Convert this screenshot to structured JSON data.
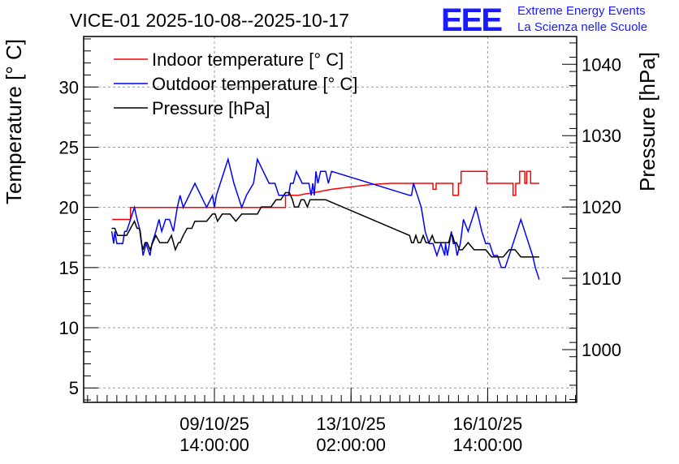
{
  "header": {
    "title": "VICE-01 2025-10-08--2025-10-17",
    "logo_letters": "EEE",
    "logo_line1": "Extreme Energy Events",
    "logo_line2": "La Scienza nelle Scuole"
  },
  "chart_data": {
    "type": "line",
    "title": "VICE-01 2025-10-08--2025-10-17",
    "ylabel": "Temperature [° C]",
    "y2label": "Pressure [hPa]",
    "ylim": [
      3.8,
      34.2
    ],
    "y2lim": [
      992.6,
      1043.9
    ],
    "yticks": [
      5,
      10,
      15,
      20,
      25,
      30
    ],
    "y2ticks": [
      1000,
      1010,
      1020,
      1030,
      1040
    ],
    "xticks": [
      {
        "x": 1.0,
        "line1": "09/10/25",
        "line2": "14:00:00"
      },
      {
        "x": 4.5,
        "line1": "13/10/25",
        "line2": "02:00:00"
      },
      {
        "x": 8.0,
        "line1": "16/10/25",
        "line2": "14:00:00"
      }
    ],
    "xlim": [
      -2.35,
      10.28
    ],
    "grid": true,
    "legend_position": "top-left",
    "series": [
      {
        "name": "Indoor temperature [° C]",
        "color": "#ff0000",
        "axis": "left",
        "x": [
          -1.62,
          -1.15,
          -1.15,
          2.82,
          2.82,
          3.15,
          3.3,
          3.5,
          4.0,
          4.5,
          5.0,
          5.5,
          5.9,
          5.9,
          6.6,
          6.6,
          6.68,
          6.68,
          7.11,
          7.11,
          7.25,
          7.25,
          7.32,
          7.32,
          7.98,
          7.98,
          8.65,
          8.65,
          8.72,
          8.72,
          8.82,
          8.82,
          8.95,
          8.95,
          9.0,
          9.0,
          9.1,
          9.1,
          9.32
        ],
        "y": [
          19,
          19,
          20,
          20,
          21,
          21,
          21.1,
          21.2,
          21.5,
          21.7,
          21.9,
          22,
          22,
          22,
          22,
          21.5,
          21.5,
          22,
          22,
          21,
          21,
          22,
          22,
          23,
          23,
          22,
          22,
          21,
          21,
          22,
          22,
          23,
          23,
          22,
          22,
          23,
          23,
          22,
          22
        ]
      },
      {
        "name": "Outdoor temperature [° C]",
        "color": "#0000ff",
        "axis": "left",
        "x": [
          -1.63,
          -1.58,
          -1.55,
          -1.5,
          -1.35,
          -1.3,
          -1.25,
          -1.15,
          -1.05,
          -0.98,
          -0.9,
          -0.83,
          -0.75,
          -0.65,
          -0.6,
          -0.5,
          -0.42,
          -0.35,
          -0.25,
          -0.15,
          -0.05,
          0.05,
          0.12,
          0.2,
          0.35,
          0.5,
          0.65,
          0.8,
          0.95,
          1.0,
          1.05,
          1.15,
          1.35,
          1.5,
          1.6,
          1.7,
          1.82,
          2.0,
          2.1,
          2.25,
          2.4,
          2.55,
          2.65,
          2.75,
          2.9,
          2.95,
          3.02,
          3.1,
          3.25,
          3.42,
          3.48,
          3.52,
          3.56,
          3.6,
          3.65,
          3.72,
          3.85,
          3.92,
          4.0,
          6.0,
          6.05,
          6.1,
          6.2,
          6.3,
          6.4,
          6.5,
          6.6,
          6.7,
          6.8,
          6.9,
          6.92,
          6.97,
          7.02,
          7.07,
          7.12,
          7.17,
          7.22,
          7.3,
          7.38,
          7.5,
          7.6,
          7.7,
          7.78,
          7.85,
          7.95,
          8.05,
          8.15,
          8.25,
          8.35,
          8.45,
          8.55,
          8.65,
          8.75,
          8.85,
          8.95,
          9.05,
          9.15,
          9.22,
          9.32
        ],
        "y": [
          18,
          17,
          18,
          17,
          17,
          18,
          18,
          19,
          20,
          19,
          18,
          16,
          17,
          16,
          17,
          18,
          19,
          18,
          19,
          19,
          18,
          20,
          21,
          20,
          21,
          22,
          21,
          20,
          21,
          20,
          21,
          22,
          24,
          22,
          21,
          20,
          21,
          22,
          24,
          23,
          22,
          22,
          21,
          21,
          21,
          22,
          22,
          23,
          22,
          22,
          21,
          22,
          21,
          23,
          22,
          23,
          23,
          22,
          23,
          21,
          21,
          22,
          21,
          20,
          18,
          17,
          17,
          16,
          17,
          16,
          17,
          16,
          17,
          18,
          17,
          17,
          16,
          17,
          19,
          18,
          19,
          20,
          19,
          18,
          17,
          17,
          16,
          16,
          15,
          15,
          16,
          17,
          18,
          19,
          18,
          17,
          16,
          15,
          14
        ]
      },
      {
        "name": "Pressure [hPa]",
        "color": "#000000",
        "axis": "right",
        "x": [
          -1.63,
          -1.55,
          -1.48,
          -1.42,
          -1.35,
          -1.3,
          -1.25,
          -1.15,
          -1.05,
          -0.98,
          -0.92,
          -0.87,
          -0.83,
          -0.78,
          -0.72,
          -0.65,
          -0.58,
          -0.5,
          -0.4,
          -0.3,
          -0.2,
          -0.1,
          -0.05,
          0.0,
          0.08,
          0.12,
          0.2,
          0.3,
          0.42,
          0.5,
          0.65,
          0.8,
          0.95,
          1.02,
          1.08,
          1.2,
          1.4,
          1.55,
          1.7,
          1.85,
          2.0,
          2.1,
          2.2,
          2.3,
          2.45,
          2.58,
          2.7,
          2.82,
          2.92,
          3.0,
          3.05,
          3.1,
          3.15,
          3.22,
          3.3,
          3.38,
          3.45,
          3.55,
          3.7,
          3.85,
          6.0,
          6.05,
          6.1,
          6.16,
          6.22,
          6.28,
          6.35,
          6.42,
          6.5,
          6.58,
          6.65,
          6.72,
          6.8,
          6.9,
          7.0,
          7.05,
          7.1,
          7.15,
          7.2,
          7.28,
          7.35,
          7.5,
          7.65,
          7.8,
          7.95,
          8.1,
          8.25,
          8.4,
          8.55,
          8.7,
          8.85,
          9.0,
          9.15,
          9.32
        ],
        "y": [
          1017,
          1017,
          1016,
          1016,
          1016,
          1016,
          1016,
          1017,
          1018,
          1017,
          1017,
          1015,
          1014,
          1015,
          1015,
          1014,
          1015,
          1016,
          1015,
          1015,
          1015,
          1016,
          1015,
          1014,
          1015,
          1015,
          1016,
          1017,
          1017,
          1018,
          1018,
          1018,
          1019,
          1019,
          1018,
          1019,
          1019,
          1018,
          1019,
          1019,
          1019,
          1019,
          1020,
          1020,
          1020,
          1021,
          1021,
          1022,
          1022,
          1021,
          1020,
          1020,
          1020,
          1021,
          1021,
          1020,
          1021,
          1021,
          1021,
          1021,
          1016,
          1015,
          1015,
          1016,
          1015,
          1015,
          1016,
          1015,
          1015,
          1016,
          1015,
          1015,
          1015,
          1015,
          1015,
          1016,
          1016,
          1015,
          1015,
          1014,
          1014,
          1015,
          1014,
          1014,
          1014,
          1013,
          1013,
          1013,
          1014,
          1014,
          1013,
          1013,
          1013,
          1013
        ]
      }
    ]
  }
}
